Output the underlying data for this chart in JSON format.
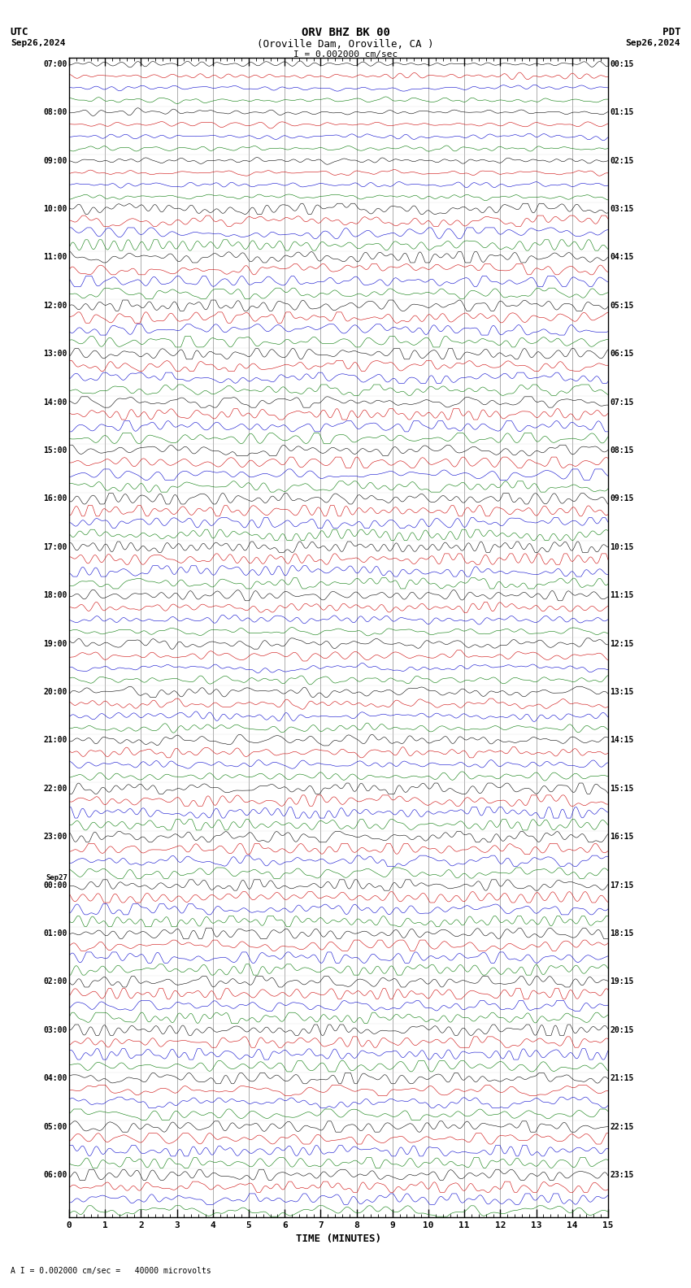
{
  "title_line1": "ORV BHZ BK 00",
  "title_line2": "(Oroville Dam, Oroville, CA )",
  "scale_label": "I = 0.002000 cm/sec",
  "bottom_label": "A I = 0.002000 cm/sec =   40000 microvolts",
  "utc_label": "UTC",
  "pdt_label": "PDT",
  "date_left": "Sep26,2024",
  "date_right": "Sep26,2024",
  "xlabel": "TIME (MINUTES)",
  "xmin": 0,
  "xmax": 15,
  "fig_width": 8.5,
  "fig_height": 15.84,
  "dpi": 100,
  "bg_color": "#ffffff",
  "grid_color": "#888888",
  "trace_colors": [
    "#000000",
    "#cc0000",
    "#0000cc",
    "#007700"
  ],
  "utc_times_major": [
    "07:00",
    "08:00",
    "09:00",
    "10:00",
    "11:00",
    "12:00",
    "13:00",
    "14:00",
    "15:00",
    "16:00",
    "17:00",
    "18:00",
    "19:00",
    "20:00",
    "21:00",
    "22:00",
    "23:00",
    "00:00",
    "01:00",
    "02:00",
    "03:00",
    "04:00",
    "05:00",
    "06:00"
  ],
  "pdt_times_major": [
    "00:15",
    "01:15",
    "02:15",
    "03:15",
    "04:15",
    "05:15",
    "06:15",
    "07:15",
    "08:15",
    "09:15",
    "10:15",
    "11:15",
    "12:15",
    "13:15",
    "14:15",
    "15:15",
    "16:15",
    "17:15",
    "18:15",
    "19:15",
    "20:15",
    "21:15",
    "22:15",
    "23:15"
  ],
  "sep27_row": 17,
  "num_hour_blocks": 24,
  "traces_per_block": 4,
  "seed": 12345
}
